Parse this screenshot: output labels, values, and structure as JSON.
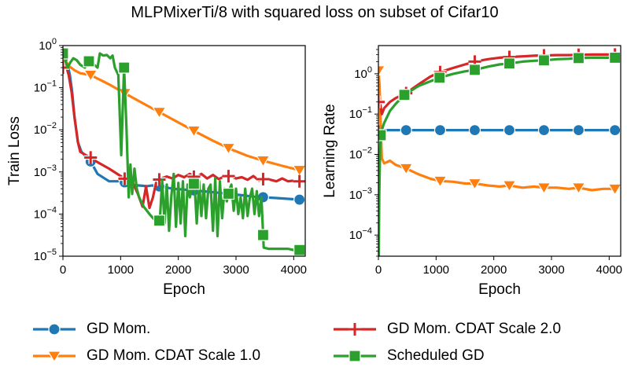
{
  "title": "MLPMixerTi/8 with squared loss on subset of Cifar10",
  "legend": [
    {
      "label": "GD Mom.",
      "series": "gd_mom"
    },
    {
      "label": "GD Mom. CDAT Scale 2.0",
      "series": "cdat2"
    },
    {
      "label": "GD Mom. CDAT Scale 1.0",
      "series": "cdat1"
    },
    {
      "label": "Scheduled GD",
      "series": "sched"
    }
  ],
  "colors": {
    "gd_mom": "#1f77b4",
    "cdat1": "#ff7f0e",
    "cdat2": "#d62728",
    "sched": "#2ca02c"
  },
  "markers": {
    "gd_mom": "circle",
    "cdat1": "triangle-down",
    "cdat2": "plus",
    "sched": "square"
  },
  "chart_data": [
    {
      "type": "line",
      "title": "",
      "xlabel": "Epoch",
      "ylabel": "Train Loss",
      "yscale": "log",
      "xlim": [
        0,
        4200
      ],
      "ylim": [
        1e-05,
        1
      ],
      "xticks": [
        0,
        1000,
        2000,
        3000,
        4000
      ],
      "yticks": [
        {
          "value": 1,
          "label": "10^0"
        },
        {
          "value": 0.1,
          "label": "10^-1"
        },
        {
          "value": 0.01,
          "label": "10^-2"
        },
        {
          "value": 0.001,
          "label": "10^-3"
        },
        {
          "value": 0.0001,
          "label": "10^-4"
        },
        {
          "value": 1e-05,
          "label": "10^-5"
        }
      ],
      "series": [
        {
          "key": "gd_mom",
          "name": "GD Mom.",
          "x": [
            0,
            40,
            80,
            120,
            160,
            200,
            260,
            320,
            380,
            450,
            600,
            800,
            1000,
            1100,
            1200,
            1300,
            1450,
            1550,
            1600,
            1700,
            1900,
            2100,
            2300,
            2500,
            2700,
            2900,
            3100,
            3300,
            3500,
            3700,
            3900,
            4100
          ],
          "y": [
            0.5,
            0.45,
            0.35,
            0.2,
            0.08,
            0.02,
            0.005,
            0.003,
            0.0025,
            0.0021,
            0.0009,
            0.0006,
            0.0006,
            0.00055,
            0.0005,
            0.00048,
            0.00046,
            0.00048,
            0.00045,
            0.00045,
            0.0004,
            0.00038,
            0.00036,
            0.00034,
            0.00032,
            0.0003,
            0.00028,
            0.00026,
            0.00025,
            0.00024,
            0.00023,
            0.00022
          ],
          "markers_at": [
            0,
            480,
            1070,
            1670,
            2270,
            2870,
            3470,
            4100
          ]
        },
        {
          "key": "cdat1",
          "name": "GD Mom. CDAT Scale 1.0",
          "x": [
            0,
            40,
            100,
            200,
            300,
            480,
            800,
            1100,
            1500,
            1700,
            2000,
            2300,
            2600,
            2900,
            3200,
            3500,
            3800,
            4100
          ],
          "y": [
            0.5,
            0.45,
            0.33,
            0.26,
            0.22,
            0.2,
            0.12,
            0.07,
            0.035,
            0.025,
            0.015,
            0.009,
            0.0055,
            0.0035,
            0.0024,
            0.0018,
            0.0014,
            0.0011
          ],
          "markers_at": [
            0,
            480,
            1070,
            1670,
            2270,
            2870,
            3470,
            4100
          ]
        },
        {
          "key": "cdat2",
          "name": "GD Mom. CDAT Scale 2.0",
          "x": [
            0,
            50,
            100,
            150,
            200,
            260,
            300,
            400,
            480,
            600,
            800,
            1000,
            1100,
            1200,
            1300,
            1380,
            1440,
            1500,
            1560,
            1620,
            1700,
            1800,
            1900,
            2000,
            2100,
            2200,
            2300,
            2400,
            2500,
            2600,
            2700,
            2800,
            2900,
            3000,
            3100,
            3200,
            3300,
            3400,
            3500,
            3600,
            3700,
            3800,
            3900,
            4000,
            4100
          ],
          "y": [
            0.3,
            0.35,
            0.2,
            0.08,
            0.02,
            0.005,
            0.003,
            0.0025,
            0.0022,
            0.0017,
            0.0012,
            0.0008,
            0.00065,
            0.0006,
            0.0003,
            0.00015,
            0.00045,
            0.00014,
            0.00025,
            0.0006,
            0.0007,
            0.00078,
            0.0007,
            0.00085,
            0.00075,
            0.0009,
            0.00072,
            0.0009,
            0.0007,
            0.00085,
            0.00068,
            0.00078,
            0.0008,
            0.0007,
            0.00075,
            0.00065,
            0.0008,
            0.00062,
            0.0007,
            0.00065,
            0.0006,
            0.0007,
            0.0006,
            0.00062,
            0.0006
          ],
          "markers_at": [
            0,
            480,
            1070,
            1670,
            2270,
            2870,
            3470,
            4100
          ]
        },
        {
          "key": "sched",
          "name": "Scheduled GD",
          "x": [
            0,
            40,
            80,
            130,
            180,
            240,
            300,
            380,
            430,
            470,
            500,
            540,
            600,
            640,
            700,
            760,
            820,
            860,
            900,
            960,
            1010,
            1060,
            1100,
            1140,
            1170,
            1200,
            1240,
            1280,
            1320,
            1400,
            1500,
            1600,
            1680,
            1720,
            1760,
            1800,
            1840,
            1880,
            1920,
            1960,
            2000,
            2040,
            2080,
            2120,
            2160,
            2200,
            2240,
            2280,
            2320,
            2360,
            2400,
            2440,
            2480,
            2520,
            2560,
            2600,
            2640,
            2680,
            2720,
            2760,
            2800,
            2840,
            2880,
            2920,
            2960,
            3000,
            3040,
            3080,
            3120,
            3160,
            3200,
            3240,
            3280,
            3320,
            3360,
            3400,
            3440,
            3480,
            3560,
            3700,
            3800,
            3900,
            4000,
            4100
          ],
          "y": [
            0.65,
            0.45,
            0.3,
            0.4,
            0.5,
            0.45,
            0.35,
            0.3,
            0.4,
            0.45,
            0.45,
            0.35,
            0.3,
            0.65,
            0.58,
            0.6,
            0.5,
            0.58,
            0.3,
            0.2,
            0.0025,
            0.3,
            0.012,
            0.00025,
            0.0015,
            0.0003,
            0.0012,
            0.0004,
            0.00025,
            0.00015,
            0.0001,
            7e-05,
            7e-05,
            0.00065,
            6e-05,
            0.0005,
            4e-05,
            0.00028,
            0.0009,
            5e-05,
            0.00055,
            6e-05,
            0.0006,
            3e-05,
            0.0005,
            0.00025,
            0.00045,
            0.00055,
            6e-05,
            0.0006,
            9e-05,
            0.0005,
            8e-05,
            0.0004,
            0.0005,
            4e-05,
            0.0007,
            3e-05,
            0.0006,
            8e-05,
            0.0004,
            0.0002,
            0.00035,
            0.0005,
            0.00012,
            0.0004,
            0.0001,
            0.00025,
            8e-05,
            0.0004,
            9e-05,
            0.00025,
            0.0004,
            0.0001,
            0.00035,
            9e-05,
            0.00025,
            1.6e-05,
            1.5e-05,
            1.5e-05,
            1.5e-05,
            1.5e-05,
            1.4e-05,
            1.4e-05
          ],
          "markers_at": [
            0,
            450,
            1060,
            1670,
            2270,
            2870,
            3470,
            4100
          ]
        }
      ]
    },
    {
      "type": "line",
      "title": "",
      "xlabel": "Epoch",
      "ylabel": "Learning Rate",
      "yscale": "log",
      "xlim": [
        0,
        4200
      ],
      "ylim": [
        3e-05,
        5
      ],
      "xticks": [
        0,
        1000,
        2000,
        3000,
        4000
      ],
      "yticks": [
        {
          "value": 1,
          "label": "10^0"
        },
        {
          "value": 0.1,
          "label": "10^-1"
        },
        {
          "value": 0.01,
          "label": "10^-2"
        },
        {
          "value": 0.001,
          "label": "10^-3"
        },
        {
          "value": 0.0001,
          "label": "10^-4"
        }
      ],
      "series": [
        {
          "key": "gd_mom",
          "name": "GD Mom.",
          "x": [
            0,
            4100
          ],
          "y": [
            0.04,
            0.04
          ],
          "markers_at": [
            0,
            480,
            1070,
            1670,
            2270,
            2870,
            3470,
            4100
          ]
        },
        {
          "key": "cdat1",
          "name": "GD Mom. CDAT Scale 1.0",
          "x": [
            0,
            20,
            40,
            60,
            100,
            200,
            300,
            480,
            700,
            900,
            1070,
            1300,
            1500,
            1670,
            1900,
            2100,
            2270,
            2500,
            2700,
            2870,
            3100,
            3300,
            3470,
            3700,
            3900,
            4100
          ],
          "y": [
            1.2,
            0.5,
            0.05,
            0.008,
            0.006,
            0.007,
            0.0055,
            0.0045,
            0.0032,
            0.0025,
            0.0022,
            0.0021,
            0.0019,
            0.0019,
            0.0017,
            0.0016,
            0.0017,
            0.0015,
            0.0016,
            0.0015,
            0.0015,
            0.0014,
            0.0015,
            0.0013,
            0.0014,
            0.0014
          ],
          "markers_at": [
            0,
            480,
            1070,
            1670,
            2270,
            2870,
            3470,
            4100
          ]
        },
        {
          "key": "cdat2",
          "name": "GD Mom. CDAT Scale 2.0",
          "x": [
            0,
            20,
            40,
            60,
            100,
            200,
            300,
            480,
            700,
            900,
            1070,
            1300,
            1500,
            1670,
            1900,
            2100,
            2270,
            2500,
            2700,
            2870,
            3100,
            3300,
            3470,
            3700,
            3900,
            4100
          ],
          "y": [
            0.2,
            0.25,
            0.15,
            0.1,
            0.14,
            0.2,
            0.25,
            0.33,
            0.55,
            0.85,
            1.1,
            1.4,
            1.7,
            2.0,
            2.3,
            2.5,
            2.6,
            2.7,
            2.8,
            2.85,
            2.9,
            2.9,
            2.95,
            3.0,
            3.0,
            3.0
          ],
          "markers_at": [
            0,
            480,
            1070,
            1670,
            2270,
            2870,
            3470,
            4100
          ]
        },
        {
          "key": "sched",
          "name": "Scheduled GD",
          "x": [
            5,
            15,
            30,
            40,
            60,
            80,
            100,
            200,
            300,
            450,
            700,
            900,
            1060,
            1300,
            1500,
            1670,
            1900,
            2100,
            2270,
            2500,
            2700,
            2870,
            3100,
            3300,
            3470,
            3700,
            3900,
            4100
          ],
          "y": [
            3e-05,
            0.001,
            0.015,
            0.03,
            0.04,
            0.05,
            0.06,
            0.12,
            0.18,
            0.3,
            0.5,
            0.65,
            0.8,
            1.0,
            1.15,
            1.25,
            1.5,
            1.7,
            1.8,
            2.0,
            2.1,
            2.15,
            2.3,
            2.35,
            2.45,
            2.5,
            2.5,
            2.5
          ],
          "markers_at": [
            40,
            450,
            1060,
            1670,
            2270,
            2870,
            3470,
            4100
          ]
        }
      ]
    }
  ]
}
